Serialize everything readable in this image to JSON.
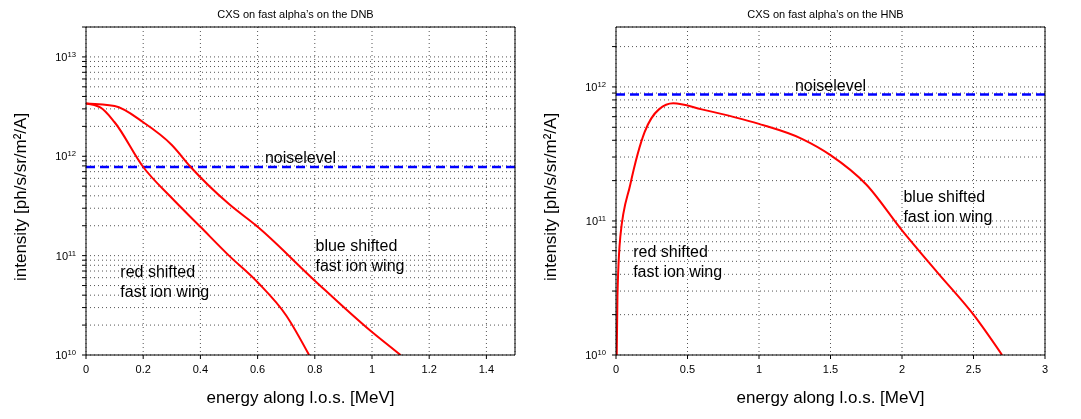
{
  "chart_data": [
    {
      "type": "line",
      "title": "CXS on fast alpha’s on the DNB",
      "xlabel": "energy along l.o.s. [MeV]",
      "ylabel": "intensity [ph/s/sr/m²/A]",
      "log": "y",
      "grid": true,
      "marker": "none",
      "line_style": "solid",
      "xlim": [
        0,
        1.5
      ],
      "xticks": [
        0,
        0.2,
        0.4,
        0.6,
        0.8,
        1,
        1.2,
        1.4
      ],
      "ylim": [
        10000000000,
        20000000000000
      ],
      "yticks": [
        {
          "value": 10000000000,
          "label": "10$^{10}$"
        },
        {
          "value": 20000000000,
          "label": null
        },
        {
          "value": 30000000000,
          "label": null
        },
        {
          "value": 40000000000,
          "label": null
        },
        {
          "value": 50000000000,
          "label": null
        },
        {
          "value": 60000000000,
          "label": null
        },
        {
          "value": 70000000000,
          "label": null
        },
        {
          "value": 80000000000,
          "label": null
        },
        {
          "value": 90000000000,
          "label": null
        },
        {
          "value": 100000000000,
          "label": "10$^{11}$"
        },
        {
          "value": 200000000000,
          "label": null
        },
        {
          "value": 300000000000,
          "label": null
        },
        {
          "value": 400000000000,
          "label": null
        },
        {
          "value": 500000000000,
          "label": null
        },
        {
          "value": 600000000000,
          "label": null
        },
        {
          "value": 700000000000,
          "label": null
        },
        {
          "value": 800000000000,
          "label": null
        },
        {
          "value": 900000000000,
          "label": null
        },
        {
          "value": 1000000000000,
          "label": "10$^{12}$"
        },
        {
          "value": 2000000000000,
          "label": null
        },
        {
          "value": 3000000000000,
          "label": null
        },
        {
          "value": 4000000000000,
          "label": null
        },
        {
          "value": 5000000000000,
          "label": null
        },
        {
          "value": 6000000000000,
          "label": null
        },
        {
          "value": 7000000000000,
          "label": null
        },
        {
          "value": 8000000000000,
          "label": null
        },
        {
          "value": 9000000000000,
          "label": null
        },
        {
          "value": 10000000000000,
          "label": "10$^{13}$"
        },
        {
          "value": 20000000000000,
          "label": null
        }
      ],
      "series": [
        {
          "color": "#ff0000",
          "x": [
            0,
            0.1,
            0.2,
            0.3,
            0.366,
            0.5,
            0.6,
            0.8,
            1.0,
            1.1
          ],
          "values": [
            3400000000000,
            3200000000000,
            2200000000000,
            1300000000000,
            780000000000,
            330000000000,
            195000000000,
            56000000000,
            17000000000,
            10000000000
          ]
        },
        {
          "color": "#ff0000",
          "x": [
            0,
            0.05,
            0.1,
            0.2,
            0.3,
            0.4,
            0.5,
            0.6,
            0.7,
            0.78
          ],
          "values": [
            3400000000000,
            3100000000000,
            2200000000000,
            780000000000,
            380000000000,
            195000000000,
            100000000000,
            54000000000,
            25000000000,
            10000000000
          ]
        }
      ],
      "ref_lines": [
        {
          "axis": "y",
          "value": 780000000000,
          "label": "noiselevel",
          "color": "#0000ff",
          "line_style": "dashed"
        }
      ],
      "annotations": [
        "red shifted\nfast ion wing",
        "blue shifted\nfast ion wing"
      ]
    },
    {
      "type": "line",
      "title": "CXS on fast alpha’s on the HNB",
      "xlabel": "energy along l.o.s. [MeV]",
      "ylabel": "intensity [ph/s/sr/m²/A]",
      "log": "y",
      "grid": true,
      "marker": "none",
      "line_style": "solid",
      "xlim": [
        0,
        3
      ],
      "xticks": [
        0,
        0.5,
        1,
        1.5,
        2,
        2.5,
        3
      ],
      "ylim": [
        10000000000,
        2800000000000
      ],
      "yticks": [
        {
          "value": 10000000000,
          "label": "10$^{10}$"
        },
        {
          "value": 20000000000,
          "label": null
        },
        {
          "value": 30000000000,
          "label": null
        },
        {
          "value": 40000000000,
          "label": null
        },
        {
          "value": 50000000000,
          "label": null
        },
        {
          "value": 60000000000,
          "label": null
        },
        {
          "value": 70000000000,
          "label": null
        },
        {
          "value": 80000000000,
          "label": null
        },
        {
          "value": 90000000000,
          "label": null
        },
        {
          "value": 100000000000,
          "label": "10$^{11}$"
        },
        {
          "value": 200000000000,
          "label": null
        },
        {
          "value": 300000000000,
          "label": null
        },
        {
          "value": 400000000000,
          "label": null
        },
        {
          "value": 500000000000,
          "label": null
        },
        {
          "value": 600000000000,
          "label": null
        },
        {
          "value": 700000000000,
          "label": null
        },
        {
          "value": 800000000000,
          "label": null
        },
        {
          "value": 900000000000,
          "label": null
        },
        {
          "value": 1000000000000,
          "label": "10$^{12}$"
        },
        {
          "value": 2000000000000,
          "label": null
        }
      ],
      "series": [
        {
          "color": "#ff0000",
          "x": [
            0.005,
            0.01,
            0.03,
            0.1,
            0.2,
            0.3,
            0.4,
            0.6,
            1.0,
            1.3,
            1.5,
            1.75,
            2.0,
            2.25,
            2.5,
            2.7
          ],
          "values": [
            10000000000,
            27000000000,
            76000000000,
            187000000000,
            460000000000,
            680000000000,
            755000000000,
            680000000000,
            530000000000,
            410000000000,
            310000000000,
            187000000000,
            85000000000,
            41000000000,
            20000000000,
            10000000000
          ]
        }
      ],
      "ref_lines": [
        {
          "axis": "y",
          "value": 880000000000,
          "label": "noiselevel",
          "color": "#0000ff",
          "line_style": "dashed"
        }
      ],
      "annotations": [
        "red shifted\nfast ion wing",
        "blue shifted\nfast ion wing"
      ]
    }
  ]
}
